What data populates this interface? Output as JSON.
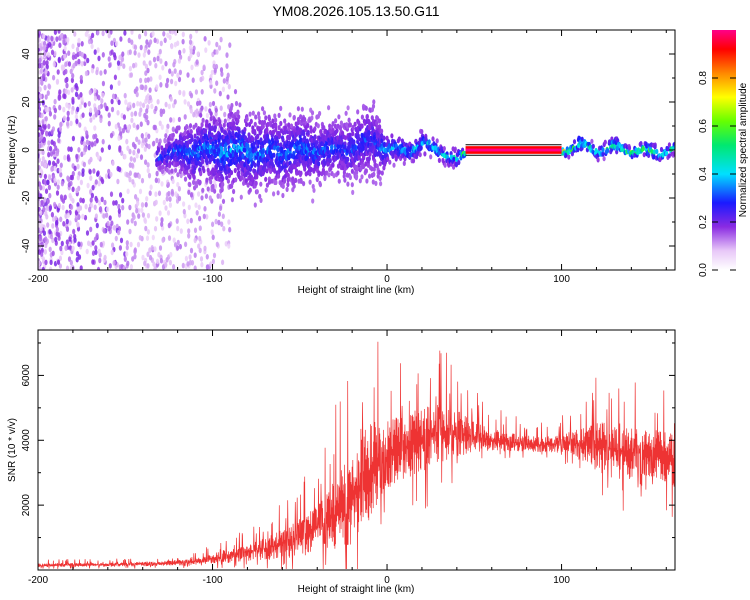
{
  "title": "YM08.2026.105.13.50.G11",
  "chart_data": [
    {
      "type": "heatmap",
      "name": "spectrogram",
      "xlabel": "Height of straight line (km)",
      "ylabel": "Frequency (Hz)",
      "xlim": [
        -200,
        165
      ],
      "ylim": [
        -50,
        50
      ],
      "xticks": [
        -200,
        -100,
        0,
        100
      ],
      "yticks": [
        -40,
        -20,
        0,
        20,
        40
      ],
      "colorbar": {
        "label": "Normalized spectral amplitude",
        "range": [
          0,
          1
        ],
        "ticks": [
          0.0,
          0.2,
          0.4,
          0.6,
          0.8
        ]
      },
      "trace": {
        "description_points_x": [
          -130,
          -110,
          -90,
          -70,
          -50,
          -30,
          -15,
          -8,
          0,
          10,
          20,
          30,
          40,
          45,
          60,
          80,
          100,
          110,
          120,
          130,
          140,
          150,
          165
        ],
        "center_freq": [
          -2,
          0,
          0,
          -1,
          0,
          0,
          2,
          4,
          0,
          0,
          2,
          0,
          -5,
          -1,
          0,
          0,
          0,
          2,
          0,
          1,
          0,
          -1,
          0
        ],
        "spread_hz": [
          5,
          12,
          14,
          13,
          12,
          10,
          12,
          14,
          6,
          4,
          4,
          3,
          3,
          1,
          1,
          1,
          1,
          3,
          2,
          3,
          2,
          3,
          2
        ],
        "amplitude": [
          0.3,
          0.35,
          0.4,
          0.35,
          0.35,
          0.3,
          0.3,
          0.25,
          0.4,
          0.45,
          0.5,
          0.5,
          0.55,
          0.95,
          1.0,
          1.0,
          1.0,
          0.6,
          0.7,
          0.65,
          0.7,
          0.65,
          0.6
        ]
      }
    },
    {
      "type": "line",
      "name": "snr",
      "xlabel": "Height of straight line (km)",
      "ylabel": "SNR (10 * v/v)",
      "xlim": [
        -200,
        165
      ],
      "ylim": [
        0,
        7400
      ],
      "xticks": [
        -200,
        -100,
        0,
        100
      ],
      "yticks": [
        2000,
        4000,
        6000
      ],
      "color": "#ee3333",
      "envelope": {
        "x": [
          -200,
          -160,
          -130,
          -110,
          -100,
          -90,
          -80,
          -70,
          -60,
          -50,
          -40,
          -30,
          -20,
          -15,
          -10,
          -5,
          0,
          5,
          10,
          20,
          30,
          40,
          50,
          60,
          70,
          80,
          90,
          100,
          110,
          120,
          130,
          140,
          150,
          160,
          165
        ],
        "mean": [
          150,
          160,
          200,
          250,
          350,
          450,
          550,
          650,
          800,
          1000,
          1300,
          1700,
          2200,
          2600,
          3000,
          3300,
          3500,
          3700,
          3800,
          4000,
          4200,
          4200,
          4100,
          4000,
          3950,
          3900,
          3850,
          3900,
          3900,
          3800,
          3700,
          3600,
          3600,
          3500,
          3400
        ],
        "amp": [
          120,
          120,
          150,
          200,
          300,
          450,
          550,
          700,
          900,
          1200,
          1500,
          2200,
          3000,
          3500,
          3200,
          2500,
          2200,
          2000,
          2000,
          2000,
          1800,
          1500,
          1000,
          700,
          600,
          500,
          500,
          600,
          900,
          1500,
          1800,
          1600,
          1500,
          1600,
          1700
        ]
      }
    }
  ]
}
